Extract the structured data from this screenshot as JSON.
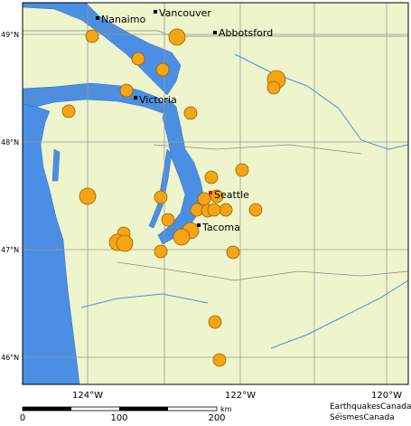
{
  "cities": [
    {
      "label": "Nanaimo"
    },
    {
      "label": "Vancouver"
    },
    {
      "label": "Abbotsford"
    },
    {
      "label": "Victoria"
    },
    {
      "label": "Seattle"
    },
    {
      "label": "Tacoma"
    }
  ],
  "latitude_labels": [
    "49°N",
    "48°N",
    "47°N",
    "46°N"
  ],
  "longitude_labels": [
    "124°W",
    "122°W",
    "120°W"
  ],
  "scale": {
    "ticks": [
      0,
      100,
      200
    ],
    "unit": "km"
  },
  "credits": [
    "EarthquakesCanada",
    "SéismesCanada"
  ]
}
